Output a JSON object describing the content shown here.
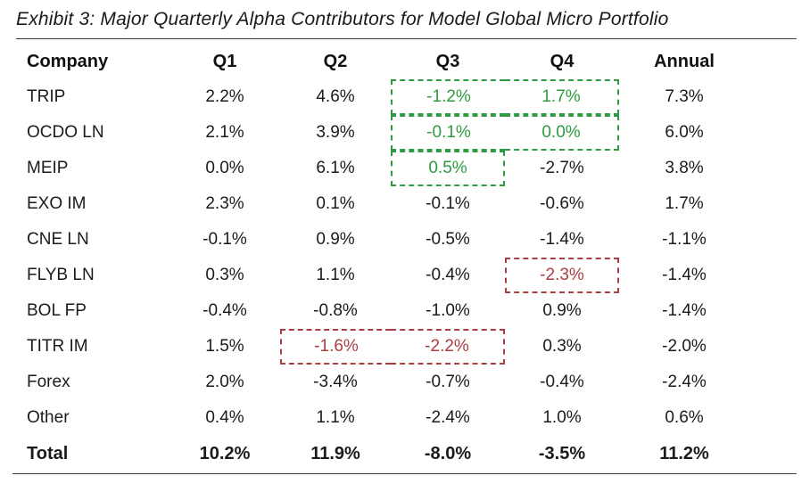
{
  "title": "Exhibit 3: Major Quarterly Alpha Contributors for Model Global Micro Portfolio",
  "table": {
    "headers": [
      "Company",
      "Q1",
      "Q2",
      "Q3",
      "Q4",
      "Annual"
    ],
    "rows": [
      {
        "company": "TRIP",
        "values": [
          "2.2%",
          "4.6%",
          "-1.2%",
          "1.7%",
          "7.3%"
        ]
      },
      {
        "company": "OCDO LN",
        "values": [
          "2.1%",
          "3.9%",
          "-0.1%",
          "0.0%",
          "6.0%"
        ]
      },
      {
        "company": "MEIP",
        "values": [
          "0.0%",
          "6.1%",
          "0.5%",
          "-2.7%",
          "3.8%"
        ]
      },
      {
        "company": "EXO IM",
        "values": [
          "2.3%",
          "0.1%",
          "-0.1%",
          "-0.6%",
          "1.7%"
        ]
      },
      {
        "company": "CNE LN",
        "values": [
          "-0.1%",
          "0.9%",
          "-0.5%",
          "-1.4%",
          "-1.1%"
        ]
      },
      {
        "company": "FLYB LN",
        "values": [
          "0.3%",
          "1.1%",
          "-0.4%",
          "-2.3%",
          "-1.4%"
        ]
      },
      {
        "company": "BOL FP",
        "values": [
          "-0.4%",
          "-0.8%",
          "-1.0%",
          "0.9%",
          "-1.4%"
        ]
      },
      {
        "company": "TITR IM",
        "values": [
          "1.5%",
          "-1.6%",
          "-2.2%",
          "0.3%",
          "-2.0%"
        ]
      },
      {
        "company": "Forex",
        "values": [
          "2.0%",
          "-3.4%",
          "-0.7%",
          "-0.4%",
          "-2.4%"
        ]
      },
      {
        "company": "Other",
        "values": [
          "0.4%",
          "1.1%",
          "-2.4%",
          "1.0%",
          "0.6%"
        ]
      }
    ],
    "total_row": {
      "company": "Total",
      "values": [
        "10.2%",
        "11.9%",
        "-8.0%",
        "-3.5%",
        "11.2%"
      ]
    }
  },
  "highlights": {
    "green_color": "#2e9b40",
    "red_color": "#ab3e42",
    "green_boxes": [
      {
        "company": "TRIP",
        "quarters": [
          "Q3",
          "Q4"
        ]
      },
      {
        "company": "OCDO LN",
        "quarters": [
          "Q3",
          "Q4"
        ]
      },
      {
        "company": "MEIP",
        "quarters": [
          "Q3"
        ]
      }
    ],
    "red_boxes": [
      {
        "company": "FLYB LN",
        "quarters": [
          "Q4"
        ]
      },
      {
        "company": "TITR IM",
        "quarters": [
          "Q2",
          "Q3"
        ]
      }
    ]
  }
}
